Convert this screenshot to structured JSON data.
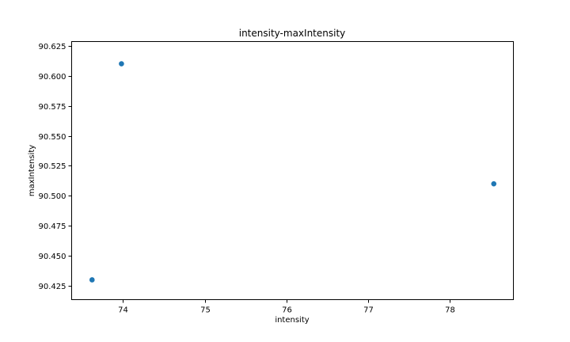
{
  "chart_data": {
    "type": "scatter",
    "title": "intensity-maxIntensity",
    "xlabel": "intensity",
    "ylabel": "maxIntensity",
    "xlim": [
      73.37,
      78.78
    ],
    "ylim": [
      90.4135,
      90.6285
    ],
    "xticks": [
      74,
      75,
      76,
      77,
      78
    ],
    "xtick_labels": [
      "74",
      "75",
      "76",
      "77",
      "78"
    ],
    "yticks": [
      90.425,
      90.45,
      90.475,
      90.5,
      90.525,
      90.55,
      90.575,
      90.6,
      90.625
    ],
    "ytick_labels": [
      "90.425",
      "90.450",
      "90.475",
      "90.500",
      "90.525",
      "90.550",
      "90.575",
      "90.600",
      "90.625"
    ],
    "grid": false,
    "legend": "none",
    "marker_color": "#1f77b4",
    "points": [
      {
        "x": 73.62,
        "y": 90.43
      },
      {
        "x": 73.98,
        "y": 90.61
      },
      {
        "x": 78.54,
        "y": 90.51
      }
    ]
  }
}
